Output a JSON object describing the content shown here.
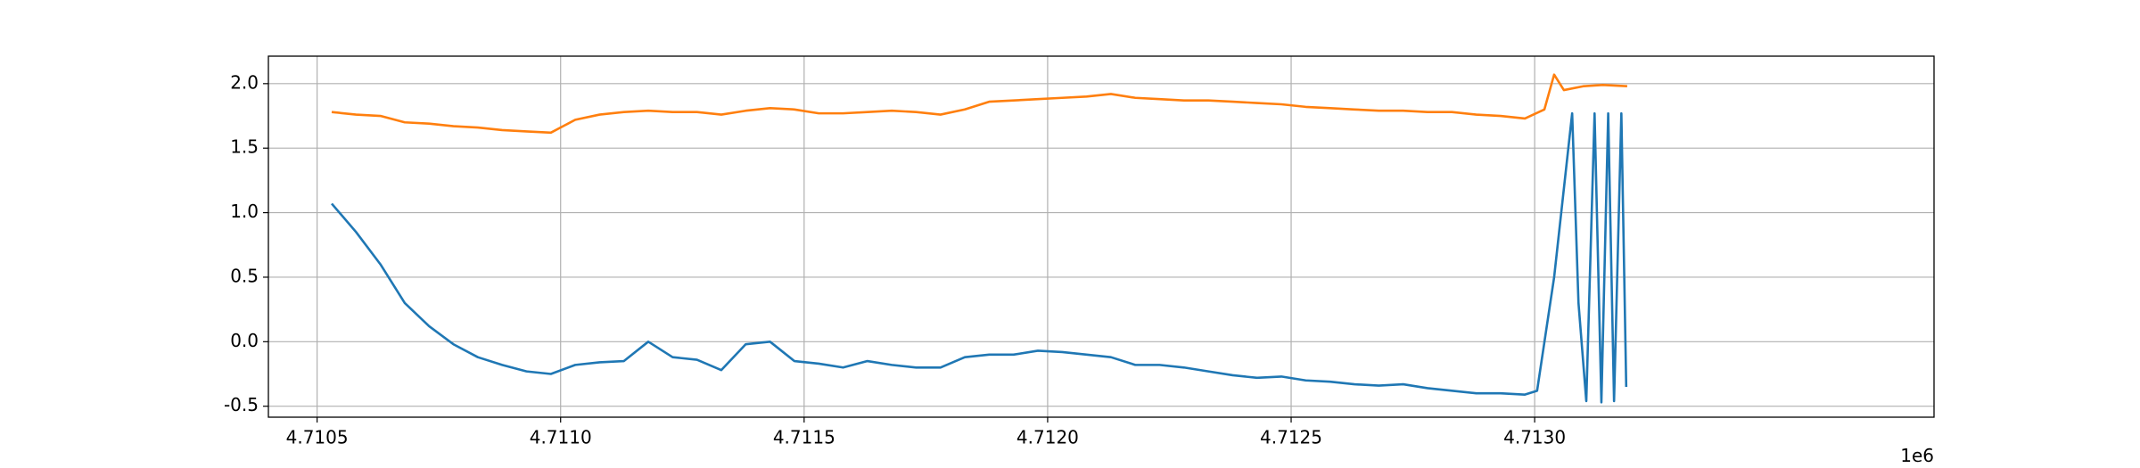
{
  "chart_data": {
    "type": "line",
    "x_offset_label": "1e6",
    "xlim": [
      4.7104,
      4.71382
    ],
    "ylim": [
      -0.585,
      2.213
    ],
    "xticks": [
      4.7105,
      {
        "value": 4.711,
        "label": "4.7110"
      },
      4.7115,
      {
        "value": 4.712,
        "label": "4.7120"
      },
      4.7125,
      {
        "value": 4.713,
        "label": "4.7130"
      }
    ],
    "yticks": [
      -0.5,
      {
        "value": 0,
        "label": "0.0"
      },
      0.5,
      {
        "value": 1,
        "label": "1.0"
      },
      1.5,
      {
        "value": 2,
        "label": "2.0"
      }
    ],
    "grid": true,
    "series": [
      {
        "color": "#1f77b4",
        "x": [
          4.71053,
          4.71058,
          4.71063,
          4.71068,
          4.71073,
          4.71078,
          4.71083,
          4.71088,
          4.71093,
          4.71098,
          4.71103,
          4.71108,
          4.71113,
          4.71118,
          4.71123,
          4.71128,
          4.71133,
          4.71138,
          4.71143,
          4.71148,
          4.71153,
          4.71158,
          4.71163,
          4.71168,
          4.71173,
          4.71178,
          4.71183,
          4.71188,
          4.71193,
          4.71198,
          4.71203,
          4.71208,
          4.71213,
          4.71218,
          4.71223,
          4.71228,
          4.71233,
          4.71238,
          4.71243,
          4.71248,
          4.71253,
          4.71258,
          4.71263,
          4.71268,
          4.71273,
          4.71278,
          4.71283,
          4.71288,
          4.71293,
          4.71298,
          4.713005,
          4.71304,
          4.713077,
          4.71309,
          4.713106,
          4.713123,
          4.713137,
          4.713151,
          4.713163,
          4.713178,
          4.713188
        ],
        "values": [
          1.07,
          0.85,
          0.6,
          0.3,
          0.12,
          -0.02,
          -0.12,
          -0.18,
          -0.23,
          -0.25,
          -0.18,
          -0.16,
          -0.15,
          0.0,
          -0.12,
          -0.14,
          -0.22,
          -0.02,
          0.0,
          -0.15,
          -0.17,
          -0.2,
          -0.15,
          -0.18,
          -0.2,
          -0.2,
          -0.12,
          -0.1,
          -0.1,
          -0.07,
          -0.08,
          -0.1,
          -0.12,
          -0.18,
          -0.18,
          -0.2,
          -0.23,
          -0.26,
          -0.28,
          -0.27,
          -0.3,
          -0.31,
          -0.33,
          -0.34,
          -0.33,
          -0.36,
          -0.38,
          -0.4,
          -0.4,
          -0.41,
          -0.38,
          0.5,
          1.77,
          0.3,
          -0.46,
          1.77,
          -0.47,
          1.77,
          -0.46,
          1.77,
          -0.35
        ]
      },
      {
        "color": "#ff7f0e",
        "x": [
          4.71053,
          4.71058,
          4.71063,
          4.71068,
          4.71073,
          4.71078,
          4.71083,
          4.71088,
          4.71093,
          4.71098,
          4.71103,
          4.71108,
          4.71113,
          4.71118,
          4.71123,
          4.71128,
          4.71133,
          4.71138,
          4.71143,
          4.71148,
          4.71153,
          4.71158,
          4.71163,
          4.71168,
          4.71173,
          4.71178,
          4.71183,
          4.71188,
          4.71193,
          4.71198,
          4.71203,
          4.71208,
          4.71213,
          4.71218,
          4.71223,
          4.71228,
          4.71233,
          4.71238,
          4.71243,
          4.71248,
          4.71253,
          4.71258,
          4.71263,
          4.71268,
          4.71273,
          4.71278,
          4.71283,
          4.71288,
          4.71293,
          4.71298,
          4.71302,
          4.71304,
          4.71306,
          4.7131,
          4.71314,
          4.71319
        ],
        "values": [
          1.78,
          1.76,
          1.75,
          1.7,
          1.69,
          1.67,
          1.66,
          1.64,
          1.63,
          1.62,
          1.72,
          1.76,
          1.78,
          1.79,
          1.78,
          1.78,
          1.76,
          1.79,
          1.81,
          1.8,
          1.77,
          1.77,
          1.78,
          1.79,
          1.78,
          1.76,
          1.8,
          1.86,
          1.87,
          1.88,
          1.89,
          1.9,
          1.92,
          1.89,
          1.88,
          1.87,
          1.87,
          1.86,
          1.85,
          1.84,
          1.82,
          1.81,
          1.8,
          1.79,
          1.79,
          1.78,
          1.78,
          1.76,
          1.75,
          1.73,
          1.8,
          2.07,
          1.95,
          1.98,
          1.99,
          1.98
        ]
      }
    ]
  }
}
